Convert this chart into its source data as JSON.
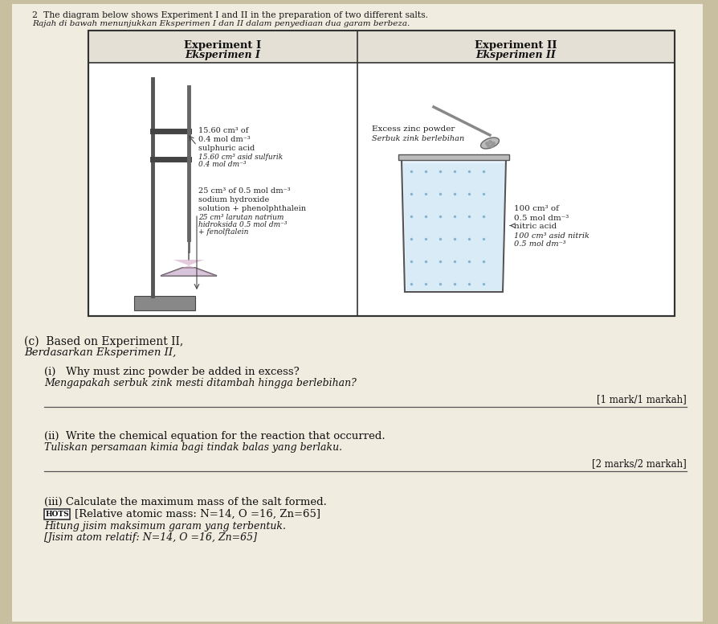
{
  "bg_color": "#c8bfa0",
  "paper_color": "#f0ece0",
  "title_line1": "2  The diagram below shows Experiment I and II in the preparation of two different salts.",
  "title_line2": "Rajah di bawah menunjukkan Eksperimen I dan II dalam penyediaan dua garam berbeza.",
  "table_header_left1": "Experiment I",
  "table_header_left2": "Eksperimen I",
  "table_header_right1": "Experiment II",
  "table_header_right2": "Eksperimen II",
  "exp1_label1": "15.60 cm³ of",
  "exp1_label2": "0.4 mol dm⁻³",
  "exp1_label3": "sulphuric acid",
  "exp1_label4": "15.60 cm³ asid sulfurik",
  "exp1_label5": "0.4 mol dm⁻³",
  "exp1_label6": "25 cm³ of 0.5 mol dm⁻³",
  "exp1_label7": "sodium hydroxide",
  "exp1_label8": "solution + phenolphthalein",
  "exp1_label9": "25 cm³ larutan natrium",
  "exp1_label10": "hidroksida 0.5 mol dm⁻³",
  "exp1_label11": "+ fenolftalein",
  "exp2_label1": "Excess zinc powder",
  "exp2_label2": "Serbuk zink berlebihan",
  "exp2_label3": "100 cm³ of",
  "exp2_label4": "0.5 mol dm⁻³",
  "exp2_label5": "nitric acid",
  "exp2_label6": "100 cm³ asid nitrik",
  "exp2_label7": "0.5 mol dm⁻³",
  "section_c_line1": "(c)  Based on Experiment II,",
  "section_c_line2": "Berdasarkan Eksperimen II,",
  "q_i_line1": "(i)   Why must zinc powder be added in excess?",
  "q_i_line2": "Mengapakah serbuk zink mesti ditambah hingga berlebihan?",
  "q_i_marks": "[1 mark/1 markah]",
  "q_ii_line1": "(ii)  Write the chemical equation for the reaction that occurred.",
  "q_ii_line2": "Tuliskan persamaan kimia bagi tindak balas yang berlaku.",
  "q_ii_marks": "[2 marks/2 markah]",
  "q_iii_line1": "(iii) Calculate the maximum mass of the salt formed.",
  "q_iii_line2": "[Relative atomic mass: N=14, O =16, Zn=65]",
  "q_iii_line3": "Hitung jisim maksimum garam yang terbentuk.",
  "q_iii_line4": "[Jisim atom relatif: N=14, O =16, Zn=65]",
  "hots_label": "HOTS"
}
